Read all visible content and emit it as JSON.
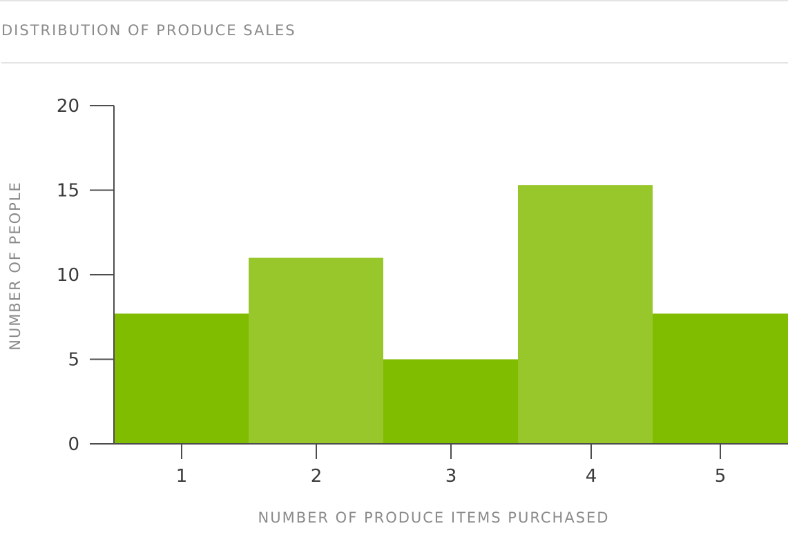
{
  "chart_data": {
    "type": "bar",
    "title": "DISTRIBUTION OF PRODUCE SALES",
    "xlabel": "NUMBER OF PRODUCE ITEMS PURCHASED",
    "ylabel": "NUMBER OF PEOPLE",
    "categories": [
      "1",
      "2",
      "3",
      "4",
      "5"
    ],
    "values": [
      7.7,
      11.0,
      5.0,
      15.3,
      7.7
    ],
    "ylim": [
      0,
      20
    ],
    "yticks": [
      "0",
      "5",
      "10",
      "15",
      "20"
    ],
    "bar_colors": [
      "#80bc00",
      "#97c72b",
      "#80bc00",
      "#97c72b",
      "#80bc00"
    ],
    "axis_color": "#4d4d4d",
    "grid": false,
    "legend": "none"
  }
}
